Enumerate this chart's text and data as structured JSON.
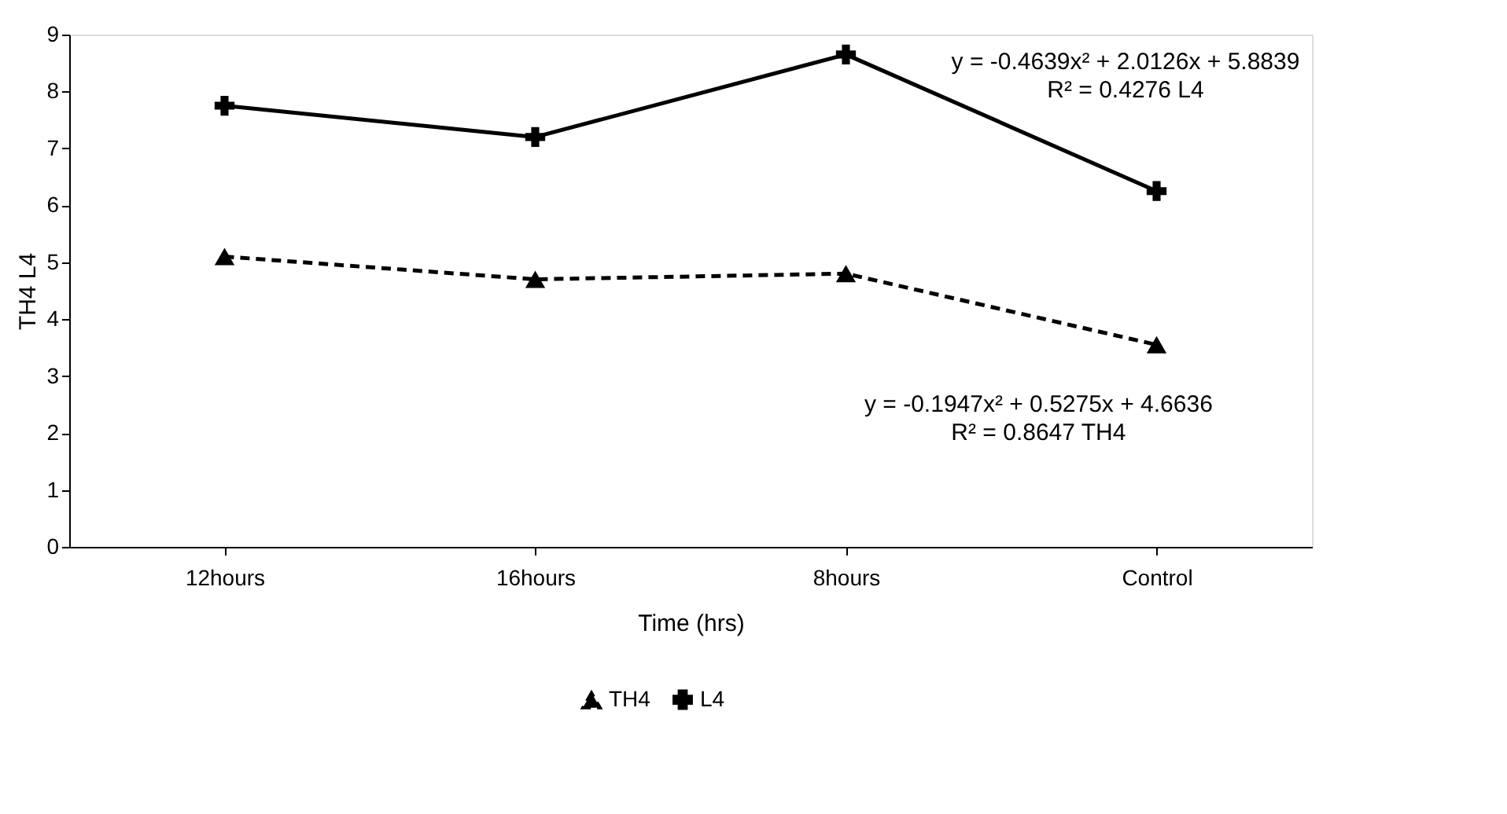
{
  "chart_data": {
    "type": "line",
    "xlabel": "Time (hrs)",
    "ylabel": "TH4 L4",
    "categories": [
      "12hours",
      "16hours",
      "8hours",
      "Control"
    ],
    "series": [
      {
        "name": "TH4",
        "color": "#000000",
        "values": [
          5.1,
          4.7,
          4.8,
          3.55
        ],
        "marker": "triangle",
        "line_style": "dashed"
      },
      {
        "name": "L4",
        "color": "#000000",
        "values": [
          7.75,
          7.2,
          8.65,
          6.25
        ],
        "marker": "cross",
        "line_style": "solid"
      }
    ],
    "ylim": [
      0,
      9
    ],
    "yticks": [
      0,
      1,
      2,
      3,
      4,
      5,
      6,
      7,
      8,
      9
    ],
    "grid": false,
    "legend": "bottom",
    "annotations": [
      "y = -0.4639x² + 2.0126x + 5.8839\nR² = 0.4276 L4",
      "y = -0.1947x² + 0.5275x + 4.6636\nR² = 0.8647 TH4"
    ]
  }
}
